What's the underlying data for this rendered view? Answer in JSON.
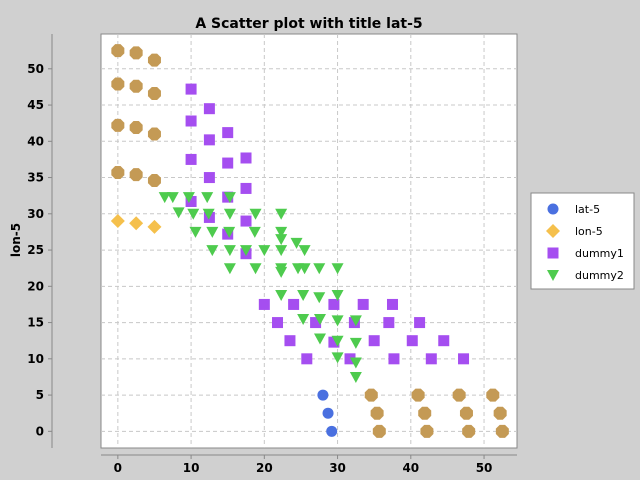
{
  "chart_data": {
    "type": "scatter",
    "title": "A Scatter plot with title lat-5",
    "xlabel": "",
    "ylabel": "lon-5",
    "xlim": [
      -2.3,
      54.5
    ],
    "ylim": [
      -2.3,
      54.8
    ],
    "x_ticks": [
      0,
      10,
      20,
      30,
      40,
      50
    ],
    "y_ticks": [
      0,
      5,
      10,
      15,
      20,
      25,
      30,
      35,
      40,
      45,
      50
    ],
    "grid": true,
    "legend_position": "right",
    "series": [
      {
        "name": "lat-5",
        "marker": "circle",
        "color": "#4a70e0",
        "points": [
          [
            28,
            5
          ],
          [
            28.7,
            2.5
          ],
          [
            29.2,
            0
          ]
        ]
      },
      {
        "name": "lon-5",
        "marker": "diamond",
        "color": "#f5c04c",
        "points": [
          [
            0,
            29
          ],
          [
            2.5,
            28.7
          ],
          [
            5,
            28.2
          ]
        ]
      },
      {
        "name": "dummy1",
        "marker": "square",
        "color": "#a54ef0",
        "points": [
          [
            10,
            47.2
          ],
          [
            12.5,
            44.5
          ],
          [
            15,
            41.2
          ],
          [
            10,
            42.8
          ],
          [
            12.5,
            40.2
          ],
          [
            10,
            37.5
          ],
          [
            15,
            37
          ],
          [
            17.5,
            37.7
          ],
          [
            12.5,
            35
          ],
          [
            17.5,
            33.5
          ],
          [
            10,
            31.7
          ],
          [
            15,
            32.3
          ],
          [
            12.5,
            29.5
          ],
          [
            17.5,
            29
          ],
          [
            15,
            27.2
          ],
          [
            17.5,
            24.5
          ],
          [
            20,
            17.5
          ],
          [
            21.8,
            15
          ],
          [
            24,
            17.5
          ],
          [
            27,
            15
          ],
          [
            23.5,
            12.5
          ],
          [
            25.8,
            10
          ],
          [
            29.5,
            17.5
          ],
          [
            29.5,
            12.3
          ],
          [
            32.3,
            15
          ],
          [
            33.5,
            17.5
          ],
          [
            31.7,
            10
          ],
          [
            35,
            12.5
          ],
          [
            37,
            15
          ],
          [
            37.5,
            17.5
          ],
          [
            37.7,
            10
          ],
          [
            40.2,
            12.5
          ],
          [
            41.2,
            15
          ],
          [
            42.8,
            10
          ],
          [
            44.5,
            12.5
          ],
          [
            47.2,
            10
          ]
        ]
      },
      {
        "name": "dummy2",
        "marker": "triangle-down",
        "color": "#4ecb4e",
        "points": [
          [
            6.4,
            32.3
          ],
          [
            7.5,
            32.3
          ],
          [
            9.7,
            32.3
          ],
          [
            12.2,
            32.3
          ],
          [
            15.3,
            32.3
          ],
          [
            8.3,
            30.2
          ],
          [
            10.3,
            30
          ],
          [
            12.4,
            30
          ],
          [
            15.3,
            30
          ],
          [
            18.8,
            30
          ],
          [
            22.3,
            30
          ],
          [
            10.6,
            27.5
          ],
          [
            12.9,
            27.5
          ],
          [
            15.2,
            27.5
          ],
          [
            18.7,
            27.5
          ],
          [
            22.3,
            27.5
          ],
          [
            12.9,
            25
          ],
          [
            15.3,
            25
          ],
          [
            17.5,
            25
          ],
          [
            20,
            25
          ],
          [
            22.3,
            25
          ],
          [
            24.4,
            26
          ],
          [
            25.5,
            25
          ],
          [
            15.3,
            22.5
          ],
          [
            18.8,
            22.5
          ],
          [
            22.3,
            22.5
          ],
          [
            25.5,
            22.5
          ],
          [
            27.5,
            22.5
          ],
          [
            30,
            22.5
          ],
          [
            22.3,
            26.5
          ],
          [
            22.3,
            22
          ],
          [
            24.6,
            22.5
          ],
          [
            22.3,
            18.8
          ],
          [
            25.3,
            18.8
          ],
          [
            27.5,
            18.5
          ],
          [
            30,
            18.8
          ],
          [
            25.3,
            15.5
          ],
          [
            27.6,
            15.5
          ],
          [
            30,
            15.3
          ],
          [
            32.5,
            15.3
          ],
          [
            27.6,
            12.8
          ],
          [
            30,
            12.5
          ],
          [
            32.5,
            12.2
          ],
          [
            30,
            10.2
          ],
          [
            32.5,
            9.5
          ],
          [
            32.5,
            7.5
          ]
        ]
      },
      {
        "name": "",
        "marker": "octagon",
        "color": "#c49a55",
        "points": [
          [
            0,
            52.5
          ],
          [
            2.5,
            52.2
          ],
          [
            5,
            51.2
          ],
          [
            0,
            47.9
          ],
          [
            2.5,
            47.6
          ],
          [
            5,
            46.6
          ],
          [
            0,
            42.2
          ],
          [
            2.5,
            41.9
          ],
          [
            5,
            41
          ],
          [
            0,
            35.7
          ],
          [
            2.5,
            35.4
          ],
          [
            5,
            34.6
          ],
          [
            34.6,
            5
          ],
          [
            35.4,
            2.5
          ],
          [
            35.7,
            0
          ],
          [
            41,
            5
          ],
          [
            41.9,
            2.5
          ],
          [
            42.2,
            0
          ],
          [
            46.6,
            5
          ],
          [
            47.6,
            2.5
          ],
          [
            47.9,
            0
          ],
          [
            51.2,
            5
          ],
          [
            52.2,
            2.5
          ],
          [
            52.5,
            0
          ]
        ]
      }
    ]
  }
}
